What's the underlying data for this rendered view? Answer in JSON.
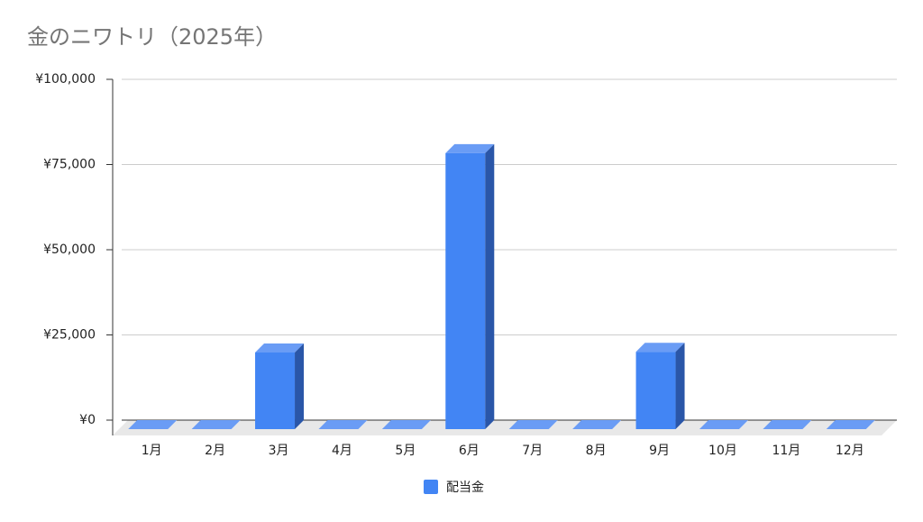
{
  "chart_data": {
    "type": "bar3d",
    "title": "金のニワトリ（2025年）",
    "categories": [
      "1月",
      "2月",
      "3月",
      "4月",
      "5月",
      "6月",
      "7月",
      "8月",
      "9月",
      "10月",
      "11月",
      "12月"
    ],
    "series": [
      {
        "name": "配当金",
        "color": "#4285f4",
        "values": [
          0,
          0,
          22500,
          0,
          0,
          81000,
          0,
          0,
          22700,
          0,
          0,
          0
        ]
      }
    ],
    "ylim": [
      0,
      100000
    ],
    "yticks": [
      {
        "value": 0,
        "label": "¥0"
      },
      {
        "value": 25000,
        "label": "¥25,000"
      },
      {
        "value": 50000,
        "label": "¥50,000"
      },
      {
        "value": 75000,
        "label": "¥75,000"
      },
      {
        "value": 100000,
        "label": "¥100,000"
      }
    ],
    "grid": true,
    "legend": "bottom"
  }
}
